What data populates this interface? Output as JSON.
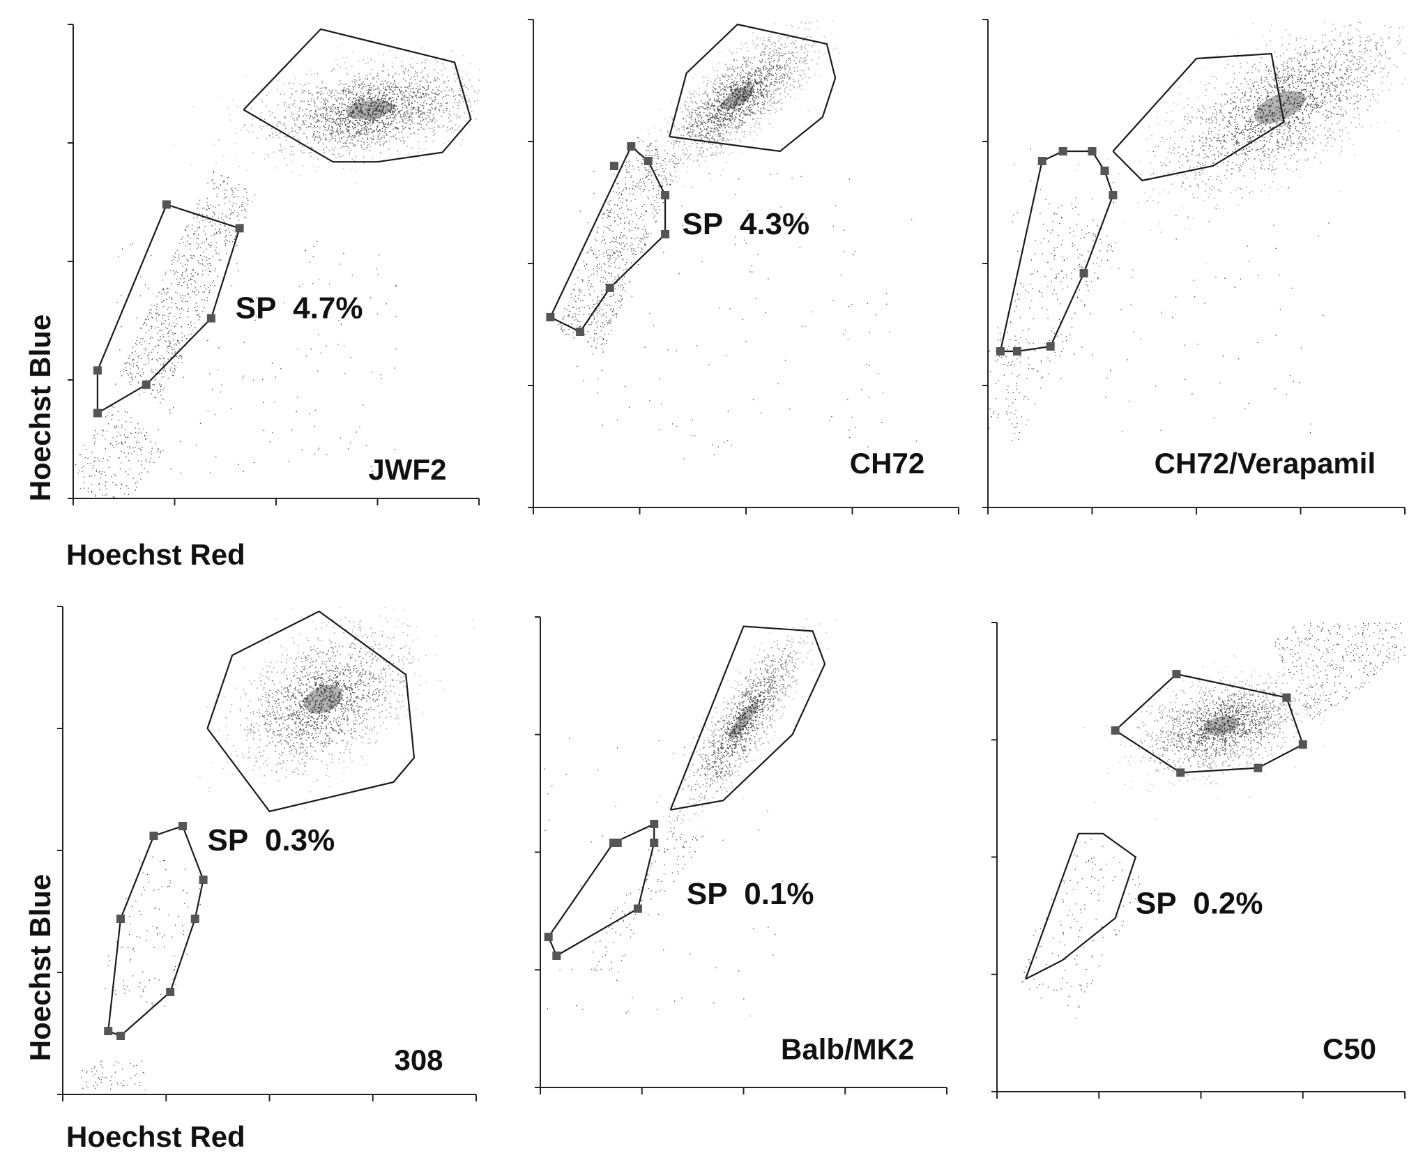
{
  "chart_data": [
    {
      "type": "scatter",
      "panel": "JWF2",
      "sample_label": "JWF2",
      "gate_label": "SP  4.7%",
      "sp_percent": 4.7,
      "xlabel": "Hoechst Red",
      "ylabel": "Hoechst Blue",
      "x_ticks": 4,
      "y_ticks": 4
    },
    {
      "type": "scatter",
      "panel": "CH72",
      "sample_label": "CH72",
      "gate_label": "SP  4.3%",
      "sp_percent": 4.3,
      "xlabel": "",
      "ylabel": "",
      "x_ticks": 4,
      "y_ticks": 4
    },
    {
      "type": "scatter",
      "panel": "CH72/Verapamil",
      "sample_label": "CH72/Verapamil",
      "gate_label": "",
      "sp_percent": null,
      "xlabel": "",
      "ylabel": "",
      "x_ticks": 4,
      "y_ticks": 4
    },
    {
      "type": "scatter",
      "panel": "308",
      "sample_label": "308",
      "gate_label": "SP  0.3%",
      "sp_percent": 0.3,
      "xlabel": "Hoechst Red",
      "ylabel": "Hoechst Blue",
      "x_ticks": 4,
      "y_ticks": 4
    },
    {
      "type": "scatter",
      "panel": "Balb/MK2",
      "sample_label": "Balb/MK2",
      "gate_label": "SP  0.1%",
      "sp_percent": 0.1,
      "xlabel": "",
      "ylabel": "",
      "x_ticks": 4,
      "y_ticks": 4
    },
    {
      "type": "scatter",
      "panel": "C50",
      "sample_label": "C50",
      "gate_label": "SP  0.2%",
      "sp_percent": 0.2,
      "xlabel": "",
      "ylabel": "",
      "x_ticks": 4,
      "y_ticks": 4
    }
  ],
  "labels": {
    "ylabel_top": "Hoechst Blue",
    "xlabel_top": "Hoechst Red",
    "ylabel_bottom": "Hoechst Blue",
    "xlabel_bottom": "Hoechst Red"
  }
}
